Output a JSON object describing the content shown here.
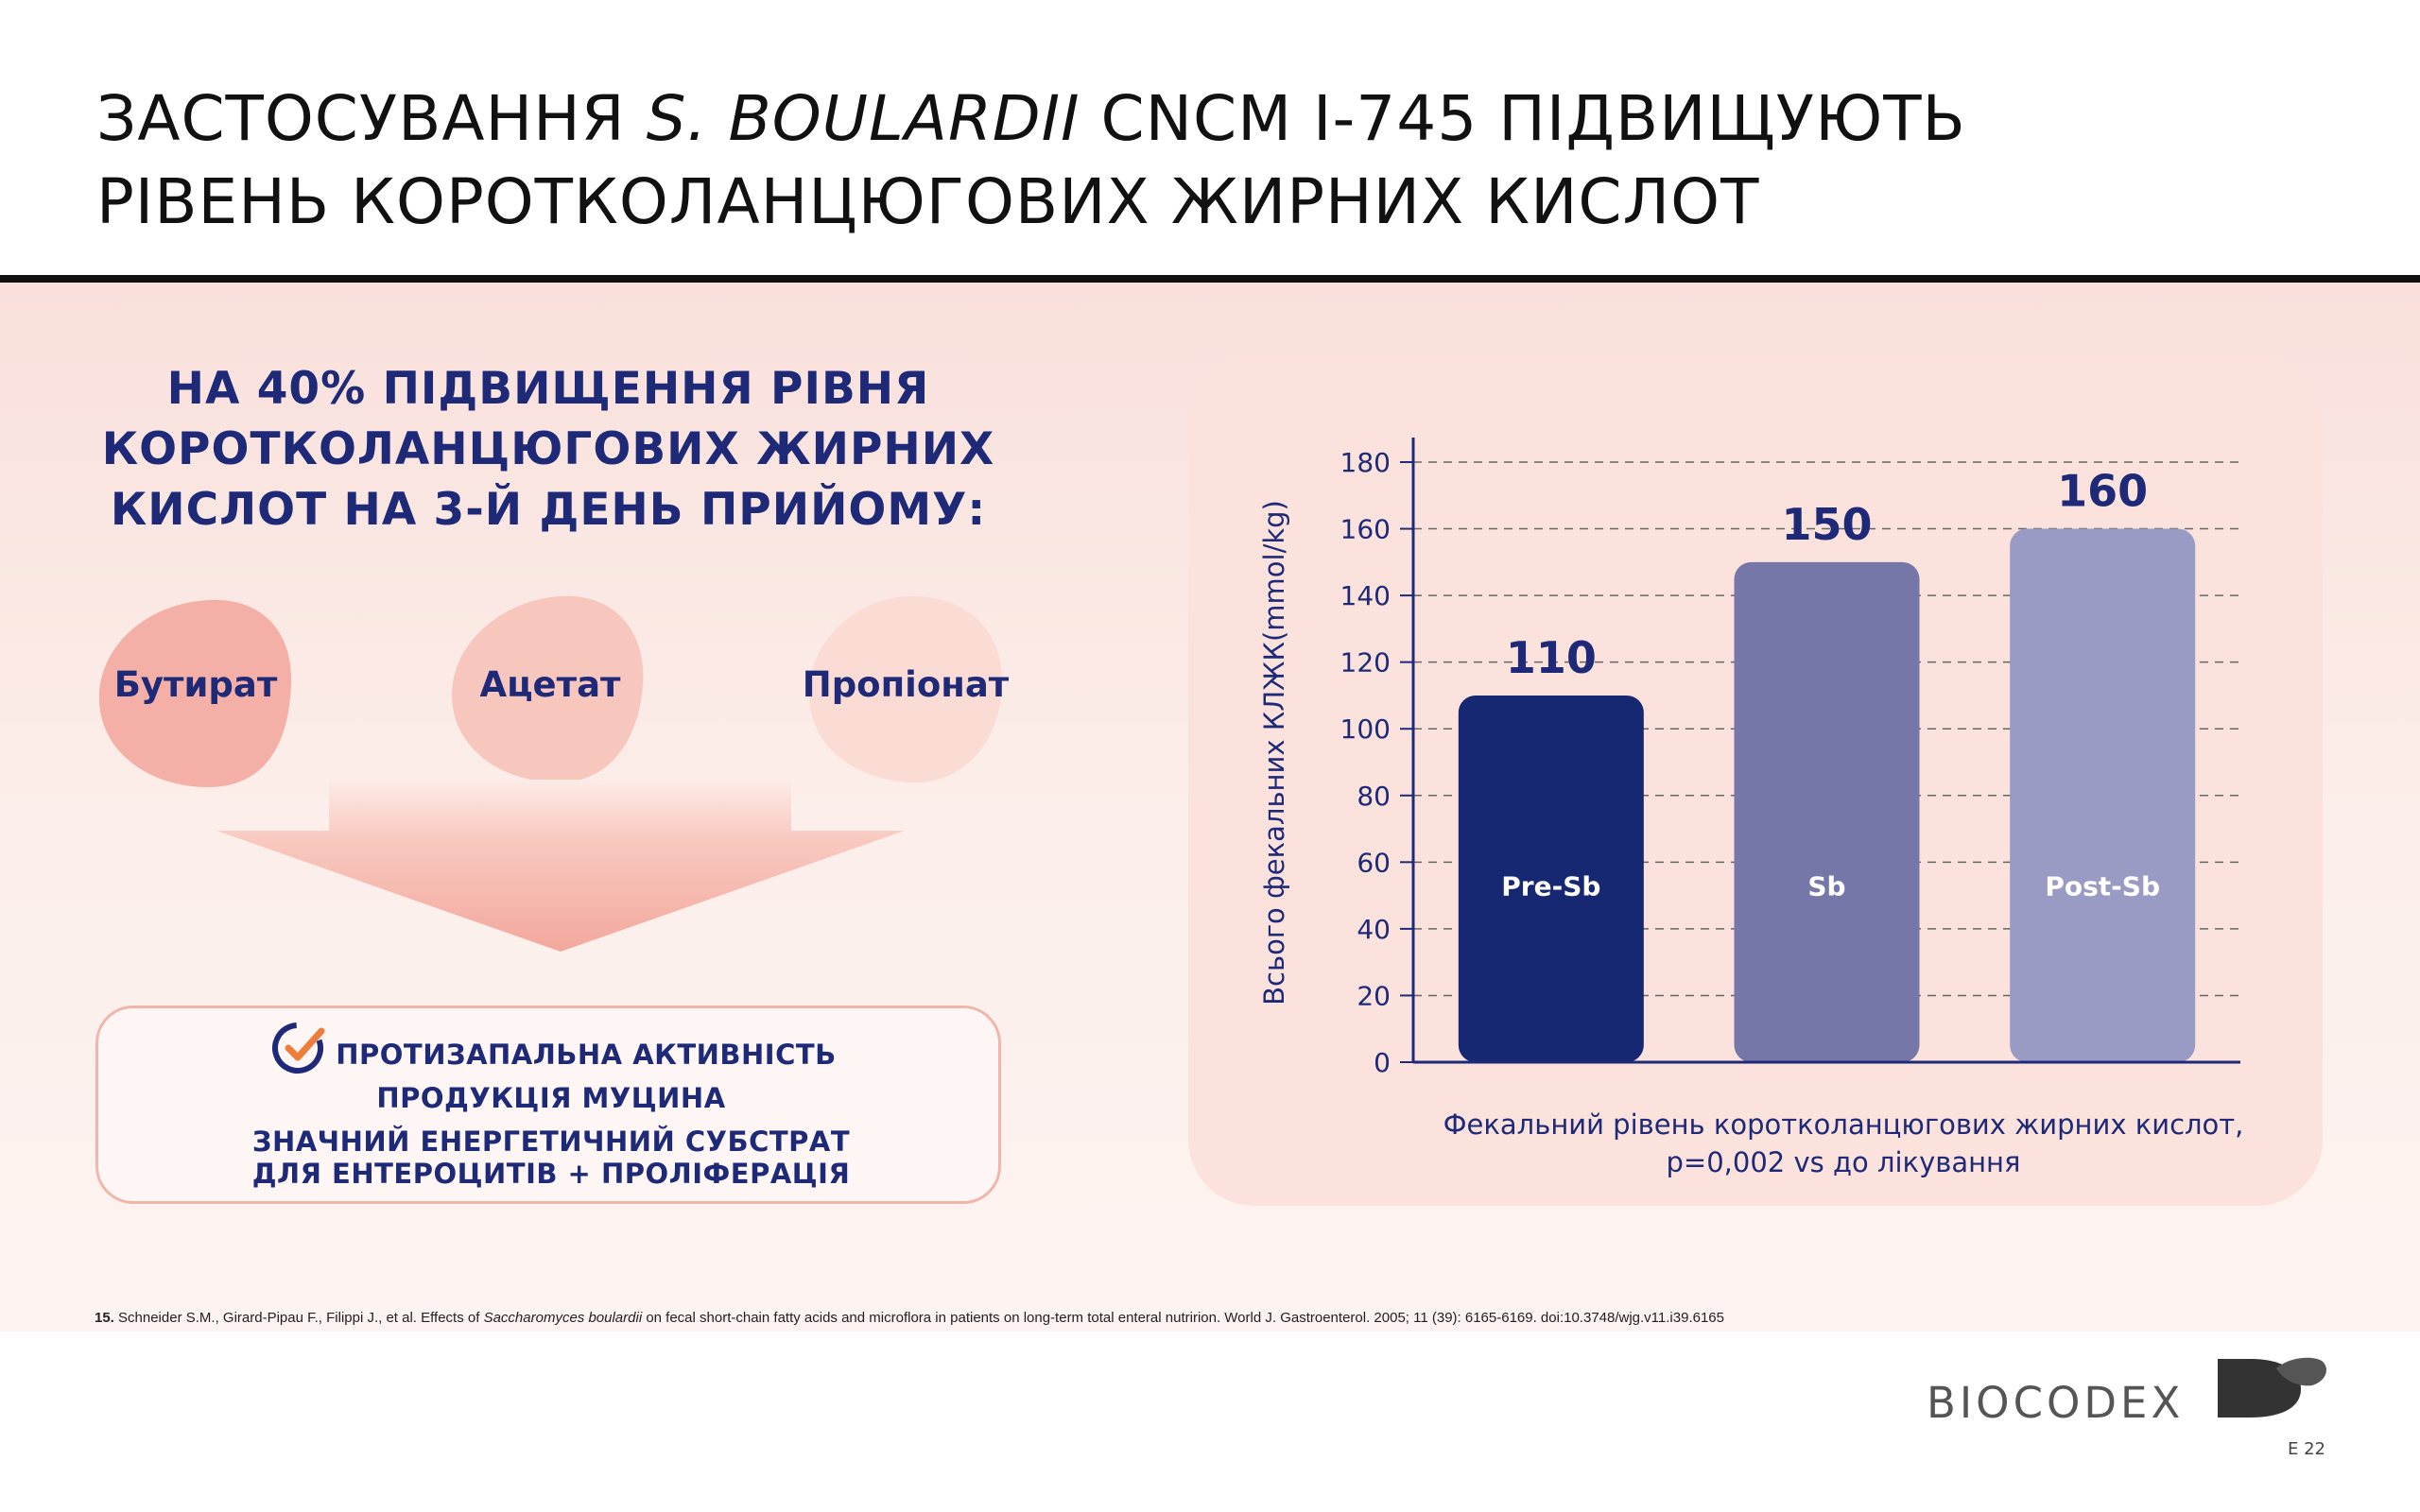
{
  "title": {
    "line1_pre": "ЗАСТОСУВАННЯ ",
    "line1_italic": "S. BOULARDII",
    "line1_post": " CNCM I-745 ПІДВИЩУЮТЬ",
    "line2": "РІВЕНЬ КОРОТКОЛАНЦЮГОВИХ ЖИРНИХ КИСЛОТ"
  },
  "headline": {
    "line1": "НА 40% ПІДВИЩЕННЯ РІВНЯ",
    "line2": "КОРОТКОЛАНЦЮГОВИХ ЖИРНИХ",
    "line3": "КИСЛОТ НА 3-Й ДЕНЬ ПРИЙОМУ:"
  },
  "acids": [
    {
      "label": "Бутират",
      "color": "#f4b0a6"
    },
    {
      "label": "Ацетат",
      "color": "#f7c6bd"
    },
    {
      "label": "Пропіонат",
      "color": "#fbdcd5"
    }
  ],
  "benefits": {
    "item1": "ПРОТИЗАПАЛЬНА АКТИВНІСТЬ",
    "item2": "ПРОДУКЦІЯ МУЦИНА",
    "item3a": "ЗНАЧНИЙ ЕНЕРГЕТИЧНИЙ СУБСТРАТ",
    "item3b": "ДЛЯ ЕНТЕРОЦИТІВ + ПРОЛІФЕРАЦІЯ"
  },
  "chart_data": {
    "type": "bar",
    "categories": [
      "Pre-Sb",
      "Sb",
      "Post-Sb"
    ],
    "values": [
      110,
      150,
      160
    ],
    "data_labels": [
      "110",
      "150",
      "160"
    ],
    "bar_colors": [
      "#172873",
      "#7677a9",
      "#9a9bc5"
    ],
    "ylabel": "Всього фекальних КЛЖК(mmol/kg)",
    "xlabel_line1": "Фекальний рівень коротколанцюгових жирних кислот,",
    "xlabel_line2": "p=0,002 vs до лікування",
    "ylim": [
      0,
      180
    ],
    "yticks": [
      0,
      20,
      40,
      60,
      80,
      100,
      120,
      140,
      160,
      180
    ],
    "grid": true,
    "grid_style": "dashed"
  },
  "footnote": {
    "num": "15.",
    "pre": " Schneider S.M., Girard-Pipau F., Filippi J., et al. Effects of ",
    "italic": "Saccharomyces boulardii",
    "post": " on fecal short-chain fatty acids and microflora in patients on long-term total enteral nutririon. World J. Gastroenterol. 2005; 11 (39): 6165-6169. doi:10.3748/wjg.v11.i39.6165"
  },
  "logo": {
    "text": "BIOCODEX"
  },
  "page": {
    "number": "E 22"
  },
  "colors": {
    "navy": "#1e2a78",
    "accent_orange": "#ee7d3b",
    "panel_pink": "#fbe2dd"
  }
}
